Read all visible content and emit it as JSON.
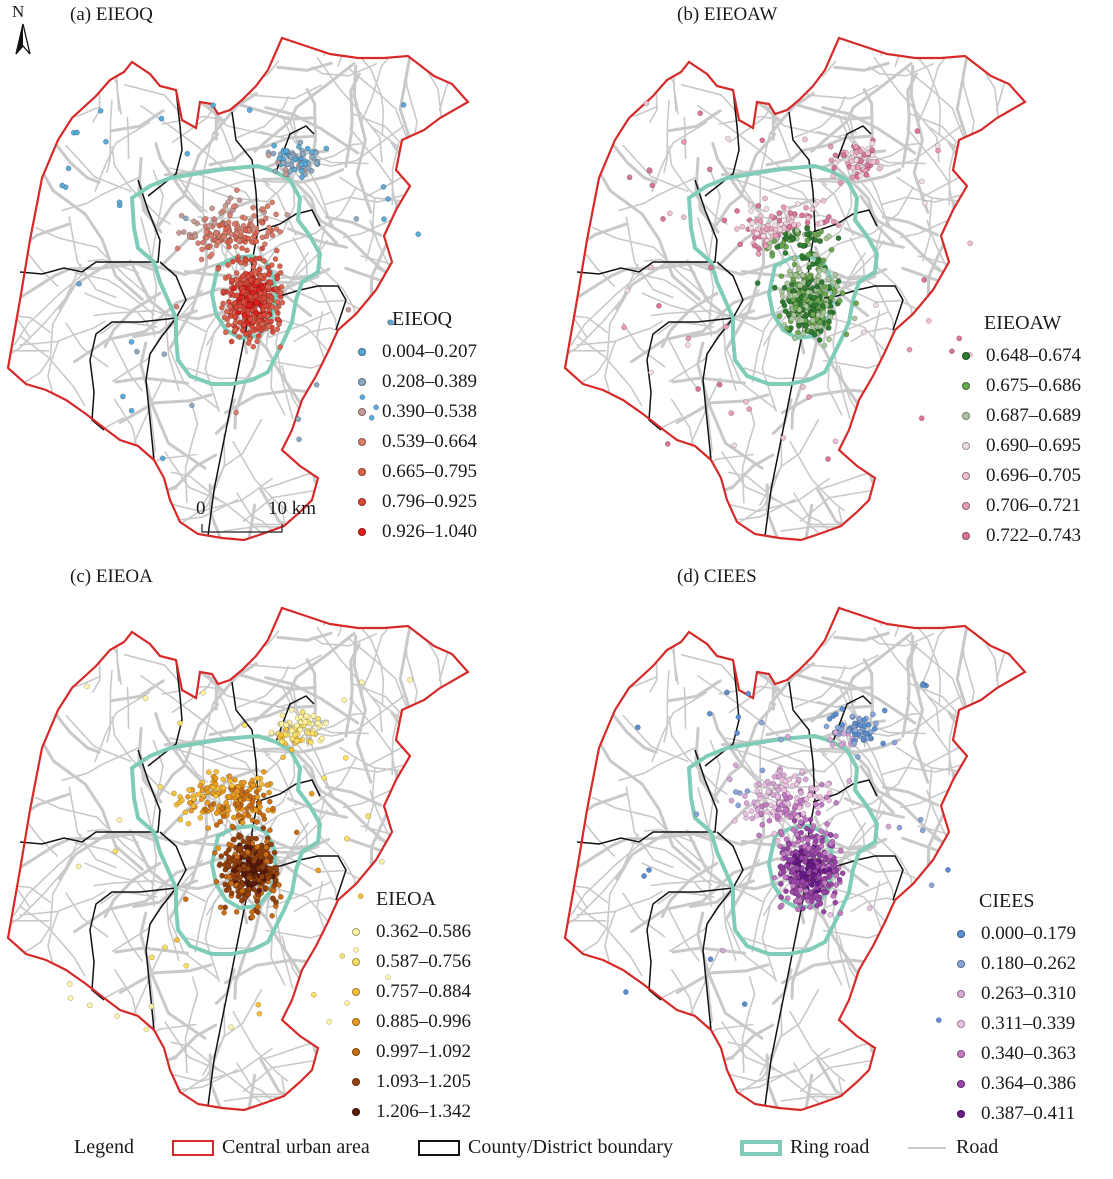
{
  "north_label": "N",
  "scale": {
    "zero": "0",
    "ten": "10 km"
  },
  "colors": {
    "urban_boundary": "#d62a2a",
    "district_boundary": "#111111",
    "ring_road": "#7fcdb8",
    "road": "#c9c9c9"
  },
  "panels": [
    {
      "id": "a",
      "title": "(a) EIEOQ",
      "legend_title": "EIEOQ",
      "classes": [
        {
          "label": "0.004–0.207",
          "color": "#5aa9d6"
        },
        {
          "label": "0.208–0.389",
          "color": "#8fa9c0"
        },
        {
          "label": "0.390–0.538",
          "color": "#c49a94"
        },
        {
          "label": "0.539–0.664",
          "color": "#d8806f"
        },
        {
          "label": "0.665–0.795",
          "color": "#d86650"
        },
        {
          "label": "0.796–0.925",
          "color": "#d9493a"
        },
        {
          "label": "0.926–1.040",
          "color": "#e01f1f"
        }
      ]
    },
    {
      "id": "b",
      "title": "(b) EIEOAW",
      "legend_title": "EIEOAW",
      "classes": [
        {
          "label": "0.648–0.674",
          "color": "#2e7d32"
        },
        {
          "label": "0.675–0.686",
          "color": "#6aa84f"
        },
        {
          "label": "0.687–0.689",
          "color": "#a9c79a"
        },
        {
          "label": "0.690–0.695",
          "color": "#f2dbe4"
        },
        {
          "label": "0.696–0.705",
          "color": "#f0bfd2"
        },
        {
          "label": "0.706–0.721",
          "color": "#e79bb7"
        },
        {
          "label": "0.722–0.743",
          "color": "#d9749a"
        }
      ]
    },
    {
      "id": "c",
      "title": "(c) EIEOA",
      "legend_title": "EIEOA",
      "classes": [
        {
          "label": "0.362–0.586",
          "color": "#fff4a6"
        },
        {
          "label": "0.587–0.756",
          "color": "#fce066"
        },
        {
          "label": "0.757–0.884",
          "color": "#f7bf3a"
        },
        {
          "label": "0.885–0.996",
          "color": "#e89a22"
        },
        {
          "label": "0.997–1.092",
          "color": "#c86d14"
        },
        {
          "label": "1.093–1.205",
          "color": "#93420f"
        },
        {
          "label": "1.206–1.342",
          "color": "#5a1a0a"
        }
      ]
    },
    {
      "id": "d",
      "title": "(d) CIEES",
      "legend_title": "CIEES",
      "classes": [
        {
          "label": "0.000–0.179",
          "color": "#5b8fd1"
        },
        {
          "label": "0.180–0.262",
          "color": "#8aa6d8"
        },
        {
          "label": "0.263–0.310",
          "color": "#d7a8d6"
        },
        {
          "label": "0.311–0.339",
          "color": "#ecc2e2"
        },
        {
          "label": "0.340–0.363",
          "color": "#c27ac2"
        },
        {
          "label": "0.364–0.386",
          "color": "#9a45a8"
        },
        {
          "label": "0.387–0.411",
          "color": "#6a1b8a"
        }
      ]
    }
  ],
  "bottom_legend": {
    "title": "Legend",
    "items": [
      {
        "label": "Central urban area"
      },
      {
        "label": "County/District boundary"
      },
      {
        "label": "Ring road"
      },
      {
        "label": "Road"
      }
    ]
  }
}
